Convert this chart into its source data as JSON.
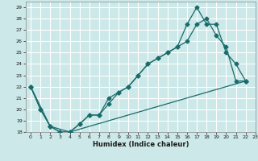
{
  "xlabel": "Humidex (Indice chaleur)",
  "xlim": [
    -0.5,
    23
  ],
  "ylim": [
    18,
    29.5
  ],
  "yticks": [
    18,
    19,
    20,
    21,
    22,
    23,
    24,
    25,
    26,
    27,
    28,
    29
  ],
  "xticks": [
    0,
    1,
    2,
    3,
    4,
    5,
    6,
    7,
    8,
    9,
    10,
    11,
    12,
    13,
    14,
    15,
    16,
    17,
    18,
    19,
    20,
    21,
    22,
    23
  ],
  "bg_color": "#cce8e8",
  "grid_color": "#ffffff",
  "line_color": "#1a6b6b",
  "line1_x": [
    0,
    1,
    2,
    3,
    4,
    5,
    6,
    7,
    8,
    9,
    10,
    11,
    12,
    13,
    14,
    15,
    16,
    17,
    18,
    19,
    20,
    21,
    22
  ],
  "line1_y": [
    22,
    20,
    18.5,
    18,
    18,
    18.7,
    19.5,
    19.5,
    21,
    21.5,
    22.0,
    23.0,
    24.0,
    24.5,
    25.0,
    25.5,
    27.5,
    29,
    27.5,
    27.5,
    25.0,
    24.0,
    22.5
  ],
  "line2_x": [
    0,
    1,
    2,
    3,
    4,
    5,
    6,
    7,
    8,
    9,
    10,
    11,
    12,
    13,
    14,
    15,
    16,
    17,
    18,
    19,
    20,
    21,
    22
  ],
  "line2_y": [
    22,
    20,
    18.5,
    18,
    18,
    18.7,
    19.5,
    19.5,
    20.5,
    21.5,
    22.0,
    23.0,
    24.0,
    24.5,
    25.0,
    25.5,
    26.0,
    27.5,
    28.0,
    26.5,
    25.5,
    22.5,
    22.5
  ],
  "line3_x": [
    0,
    2,
    4,
    22
  ],
  "line3_y": [
    22,
    18.5,
    18.0,
    22.5
  ]
}
